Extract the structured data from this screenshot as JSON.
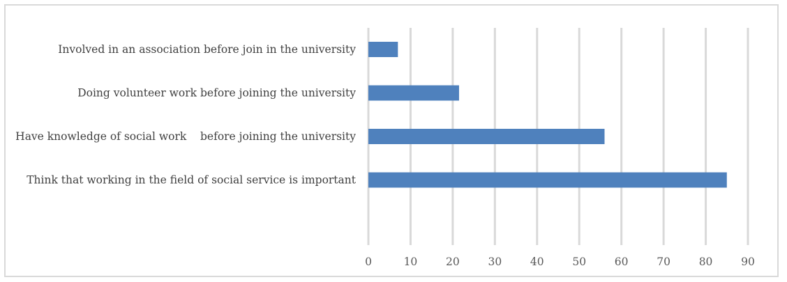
{
  "chart_data": {
    "type": "bar",
    "orientation": "horizontal",
    "title": "",
    "xlabel": "",
    "ylabel": "",
    "categories": [
      "Involved in an association before join in the university",
      "Doing volunteer work before joining the university",
      "Have knowledge of social work    before joining the university",
      "Think that working in the field of social service is important"
    ],
    "values": [
      7,
      21.5,
      56,
      85
    ],
    "xlim": [
      0,
      90
    ],
    "xticks": [
      0,
      10,
      20,
      30,
      40,
      50,
      60,
      70,
      80,
      90
    ],
    "grid": true,
    "legend": "none",
    "colors": {
      "bar": "#4f81bd",
      "grid": "#d9d9d9",
      "frame": "#d9d9d9",
      "text": "#404040"
    }
  }
}
